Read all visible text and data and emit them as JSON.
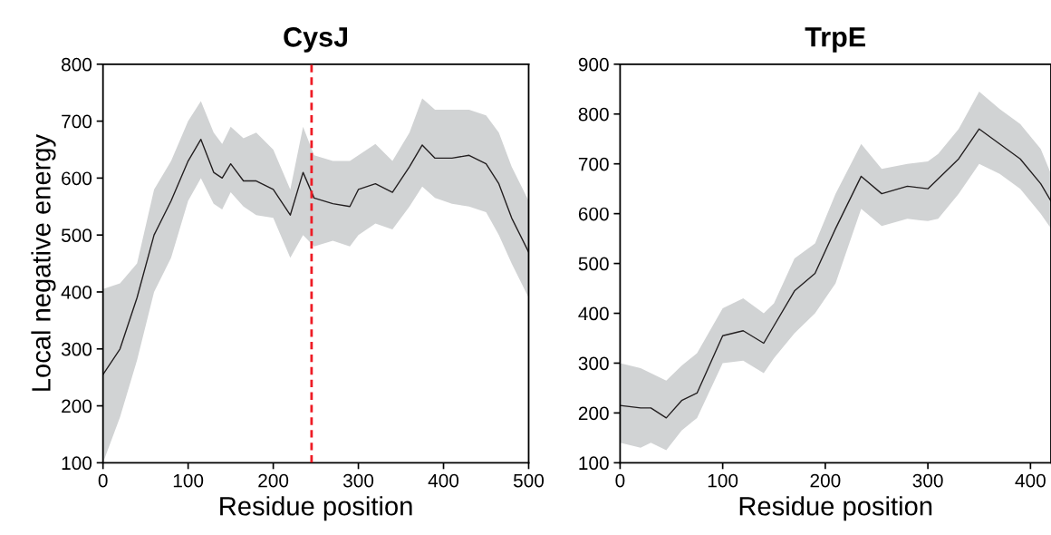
{
  "chart_data": [
    {
      "type": "line",
      "title": "CysJ",
      "xlabel": "Residue position",
      "ylabel": "Local negative energy",
      "xlim": [
        0,
        500
      ],
      "xticks": [
        0,
        100,
        200,
        300,
        400,
        500
      ],
      "ylim": [
        100,
        800
      ],
      "yticks": [
        100,
        200,
        300,
        400,
        500,
        600,
        700,
        800
      ],
      "grid": false,
      "legend": false,
      "series": [
        {
          "color": "#231f20",
          "x": [
            0,
            20,
            40,
            60,
            80,
            100,
            115,
            130,
            140,
            150,
            165,
            180,
            200,
            220,
            235,
            248,
            270,
            290,
            300,
            320,
            340,
            360,
            375,
            390,
            410,
            430,
            450,
            465,
            480,
            500
          ],
          "values": [
            255,
            300,
            390,
            500,
            560,
            630,
            668,
            610,
            600,
            625,
            595,
            595,
            580,
            535,
            610,
            565,
            555,
            550,
            580,
            590,
            575,
            620,
            658,
            635,
            635,
            640,
            625,
            590,
            530,
            470
          ],
          "lower": [
            100,
            180,
            280,
            400,
            460,
            560,
            600,
            555,
            545,
            575,
            550,
            535,
            530,
            460,
            500,
            480,
            490,
            480,
            500,
            520,
            510,
            550,
            585,
            565,
            555,
            550,
            540,
            500,
            450,
            390
          ],
          "upper": [
            405,
            415,
            450,
            580,
            630,
            700,
            735,
            680,
            660,
            690,
            670,
            680,
            650,
            580,
            690,
            640,
            630,
            630,
            640,
            660,
            630,
            680,
            740,
            720,
            720,
            720,
            710,
            680,
            620,
            560
          ]
        }
      ],
      "ref_lines": [
        {
          "axis": "x",
          "value": 245,
          "color": "#ee1c25",
          "line_style": "dashed"
        }
      ]
    },
    {
      "type": "line",
      "title": "TrpE",
      "xlabel": "Residue position",
      "xlim": [
        0,
        420
      ],
      "xticks": [
        0,
        100,
        200,
        300,
        400
      ],
      "ylim": [
        100,
        900
      ],
      "yticks": [
        100,
        200,
        300,
        400,
        500,
        600,
        700,
        800,
        900
      ],
      "grid": false,
      "legend": false,
      "series": [
        {
          "color": "#231f20",
          "x": [
            0,
            20,
            30,
            45,
            60,
            75,
            100,
            120,
            140,
            150,
            170,
            190,
            210,
            235,
            255,
            280,
            300,
            310,
            330,
            350,
            370,
            390,
            410,
            420
          ],
          "values": [
            215,
            210,
            210,
            190,
            225,
            240,
            355,
            365,
            340,
            375,
            445,
            480,
            570,
            675,
            640,
            655,
            650,
            670,
            710,
            770,
            740,
            710,
            660,
            625
          ],
          "lower": [
            140,
            130,
            140,
            125,
            165,
            190,
            300,
            305,
            280,
            310,
            360,
            400,
            460,
            610,
            575,
            590,
            585,
            590,
            640,
            700,
            680,
            650,
            600,
            570
          ],
          "upper": [
            300,
            290,
            280,
            265,
            295,
            320,
            410,
            430,
            400,
            420,
            510,
            540,
            640,
            740,
            690,
            700,
            705,
            720,
            770,
            845,
            810,
            780,
            730,
            680
          ]
        }
      ]
    }
  ]
}
